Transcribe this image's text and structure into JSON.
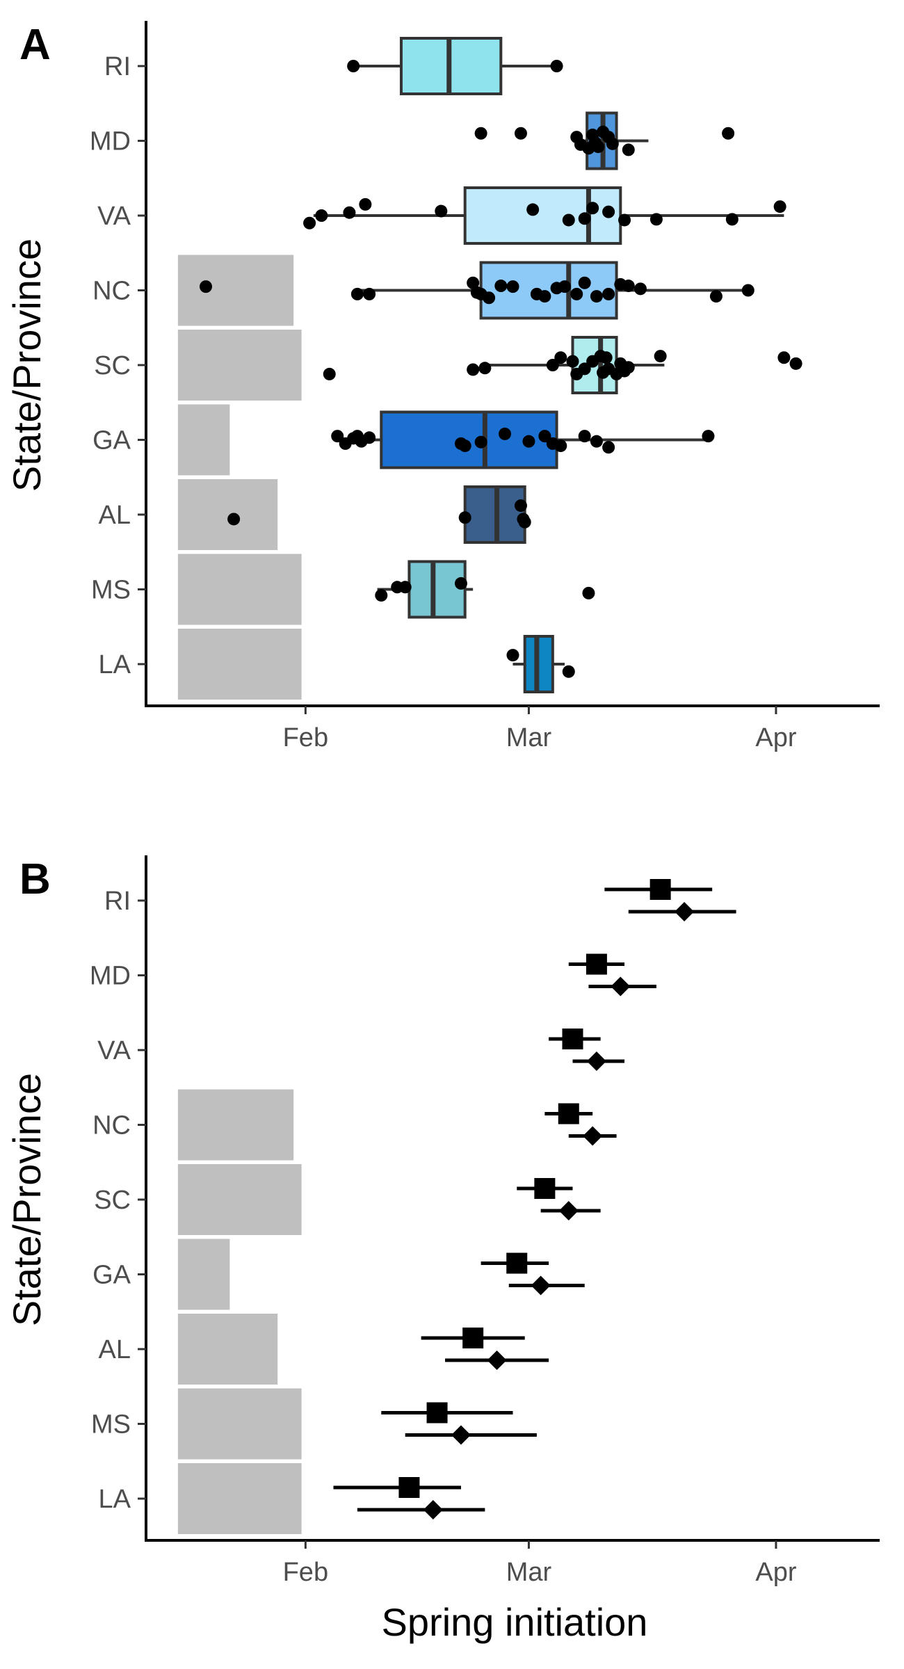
{
  "chart_data": [
    {
      "panel": "A",
      "type": "box",
      "orientation": "horizontal",
      "ylabel": "State/Province",
      "xlabel": "",
      "categories": [
        "RI",
        "MD",
        "VA",
        "NC",
        "SC",
        "GA",
        "AL",
        "MS",
        "LA"
      ],
      "x_ticks": [
        "Feb",
        "Mar",
        "Apr"
      ],
      "x_tick_values": [
        32,
        60,
        91
      ],
      "xlim": [
        12,
        104
      ],
      "x_units": "day of year",
      "grey_bars": [
        {
          "state": "NC",
          "start": 16,
          "end": 30.5
        },
        {
          "state": "SC",
          "start": 16,
          "end": 31.5
        },
        {
          "state": "GA",
          "start": 16,
          "end": 22.5
        },
        {
          "state": "AL",
          "start": 16,
          "end": 28.5
        },
        {
          "state": "MS",
          "start": 16,
          "end": 31.5
        },
        {
          "state": "LA",
          "start": 16,
          "end": 31.5
        }
      ],
      "boxes": [
        {
          "state": "RI",
          "color": "#8fe3ec",
          "min": 38,
          "q1": 44,
          "median": 50,
          "q3": 56.5,
          "max": 63.5
        },
        {
          "state": "MD",
          "color": "#4f96dc",
          "min": 67,
          "q1": 67.3,
          "median": 69.3,
          "q3": 71,
          "max": 75
        },
        {
          "state": "VA",
          "color": "#c2eafd",
          "min": 33,
          "q1": 52,
          "median": 67.5,
          "q3": 71.5,
          "max": 92
        },
        {
          "state": "NC",
          "color": "#8ecaf8",
          "min": 38,
          "q1": 54,
          "median": 65,
          "q3": 71,
          "max": 88
        },
        {
          "state": "SC",
          "color": "#b0eced",
          "min": 55,
          "q1": 65.5,
          "median": 69,
          "q3": 71,
          "max": 77
        },
        {
          "state": "GA",
          "color": "#1b70d2",
          "min": 36,
          "q1": 41.5,
          "median": 54.5,
          "q3": 63.5,
          "max": 83
        },
        {
          "state": "AL",
          "color": "#3a5f8c",
          "min": 52,
          "q1": 52,
          "median": 56,
          "q3": 59.5,
          "max": 59.5
        },
        {
          "state": "MS",
          "color": "#78c6d2",
          "min": 41,
          "q1": 45,
          "median": 48,
          "q3": 52,
          "max": 53
        },
        {
          "state": "LA",
          "color": "#0d86c3",
          "min": 58,
          "q1": 59.5,
          "median": 61,
          "q3": 63,
          "max": 64.5
        }
      ],
      "points": [
        {
          "state": "RI",
          "values": [
            38,
            63.5
          ],
          "offsets": [
            0,
            0
          ]
        },
        {
          "state": "MD",
          "values": [
            54,
            59,
            66,
            66.5,
            67.5,
            68,
            68.3,
            68.7,
            69.3,
            70,
            70.5,
            72.5,
            85
          ],
          "offsets": [
            -0.1,
            -0.1,
            -0.05,
            0.05,
            0.1,
            -0.08,
            0.02,
            0.08,
            -0.12,
            -0.05,
            0.04,
            0.12,
            -0.1
          ]
        },
        {
          "state": "VA",
          "values": [
            32.5,
            34,
            37.5,
            39.5,
            49,
            60.5,
            65,
            67,
            68,
            70,
            72,
            76,
            85.5,
            91.5
          ],
          "offsets": [
            0.1,
            0,
            -0.04,
            -0.15,
            -0.06,
            -0.08,
            0.06,
            0.04,
            -0.1,
            -0.05,
            0.06,
            0.05,
            0.05,
            -0.12
          ]
        },
        {
          "state": "NC",
          "values": [
            19.5,
            38.5,
            40,
            53,
            53.5,
            54,
            55,
            56.5,
            58,
            61,
            62,
            63.5,
            64.5,
            66,
            67,
            68.5,
            70,
            71.5,
            72.5,
            74,
            83.5,
            87.5
          ],
          "offsets": [
            -0.05,
            0.05,
            0.05,
            -0.1,
            0.03,
            0.05,
            0.1,
            -0.06,
            -0.05,
            0.05,
            0.08,
            -0.03,
            -0.05,
            0.05,
            -0.1,
            0.08,
            0.05,
            -0.08,
            -0.06,
            -0.02,
            0.08,
            0
          ]
        },
        {
          "state": "SC",
          "values": [
            35,
            53,
            54.5,
            63,
            64,
            65.5,
            66,
            67,
            68,
            69,
            69.3,
            69.7,
            70,
            71,
            71.5,
            72,
            72.5,
            76.5,
            92,
            93.5
          ],
          "offsets": [
            0.12,
            0.06,
            0.04,
            0,
            -0.1,
            -0.05,
            0.12,
            0.05,
            -0.05,
            -0.12,
            0.1,
            -0.1,
            0.05,
            0.12,
            -0.02,
            0.08,
            0.03,
            -0.12,
            -0.1,
            -0.02
          ]
        },
        {
          "state": "GA",
          "values": [
            36,
            37,
            38,
            38.5,
            39,
            40,
            51.5,
            52,
            54,
            57,
            60,
            62,
            63,
            64,
            67,
            68.5,
            70,
            82.5
          ],
          "offsets": [
            -0.05,
            0.05,
            -0.02,
            -0.05,
            0.02,
            -0.03,
            0.05,
            0.08,
            0.03,
            -0.08,
            0.02,
            -0.05,
            0.05,
            0.08,
            -0.05,
            0.02,
            0.1,
            -0.05
          ]
        },
        {
          "state": "AL",
          "values": [
            23,
            52,
            59,
            59.3,
            59.5
          ],
          "offsets": [
            0.06,
            0.04,
            -0.12,
            0.06,
            0.1
          ]
        },
        {
          "state": "MS",
          "values": [
            41.5,
            43.5,
            44.5,
            51.5,
            67.5
          ],
          "offsets": [
            0.08,
            -0.03,
            -0.03,
            -0.08,
            0.05
          ]
        },
        {
          "state": "LA",
          "values": [
            58,
            65
          ],
          "offsets": [
            -0.12,
            0.1
          ]
        }
      ]
    },
    {
      "panel": "B",
      "type": "point-range",
      "orientation": "horizontal",
      "ylabel": "State/Province",
      "xlabel": "Spring initiation",
      "categories": [
        "RI",
        "MD",
        "VA",
        "NC",
        "SC",
        "GA",
        "AL",
        "MS",
        "LA"
      ],
      "x_ticks": [
        "Feb",
        "Mar",
        "Apr"
      ],
      "x_tick_values": [
        32,
        60,
        91
      ],
      "xlim": [
        12,
        104
      ],
      "x_units": "day of year",
      "grey_bars": [
        {
          "state": "NC",
          "start": 16,
          "end": 30.5
        },
        {
          "state": "SC",
          "start": 16,
          "end": 31.5
        },
        {
          "state": "GA",
          "start": 16,
          "end": 22.5
        },
        {
          "state": "AL",
          "start": 16,
          "end": 28.5
        },
        {
          "state": "MS",
          "start": 16,
          "end": 31.5
        },
        {
          "state": "LA",
          "start": 16,
          "end": 31.5
        }
      ],
      "series": [
        {
          "marker": "square",
          "values": [
            {
              "state": "RI",
              "est": 76.5,
              "lo": 69.5,
              "hi": 83
            },
            {
              "state": "MD",
              "est": 68.5,
              "lo": 65,
              "hi": 72
            },
            {
              "state": "VA",
              "est": 65.5,
              "lo": 62.5,
              "hi": 69
            },
            {
              "state": "NC",
              "est": 65,
              "lo": 62,
              "hi": 68
            },
            {
              "state": "SC",
              "est": 62,
              "lo": 58.5,
              "hi": 65.5
            },
            {
              "state": "GA",
              "est": 58.5,
              "lo": 54,
              "hi": 62.5
            },
            {
              "state": "AL",
              "est": 53,
              "lo": 46.5,
              "hi": 59.5
            },
            {
              "state": "MS",
              "est": 48.5,
              "lo": 41.5,
              "hi": 58
            },
            {
              "state": "LA",
              "est": 45,
              "lo": 35.5,
              "hi": 51.5
            }
          ]
        },
        {
          "marker": "diamond",
          "values": [
            {
              "state": "RI",
              "est": 79.5,
              "lo": 72.5,
              "hi": 86
            },
            {
              "state": "MD",
              "est": 71.5,
              "lo": 67.5,
              "hi": 76
            },
            {
              "state": "VA",
              "est": 68.5,
              "lo": 65.5,
              "hi": 72
            },
            {
              "state": "NC",
              "est": 68,
              "lo": 65,
              "hi": 71
            },
            {
              "state": "SC",
              "est": 65,
              "lo": 61.5,
              "hi": 69
            },
            {
              "state": "GA",
              "est": 61.5,
              "lo": 57.5,
              "hi": 67
            },
            {
              "state": "AL",
              "est": 56,
              "lo": 49.5,
              "hi": 62.5
            },
            {
              "state": "MS",
              "est": 51.5,
              "lo": 44.5,
              "hi": 61
            },
            {
              "state": "LA",
              "est": 48,
              "lo": 38.5,
              "hi": 54.5
            }
          ]
        }
      ]
    }
  ]
}
